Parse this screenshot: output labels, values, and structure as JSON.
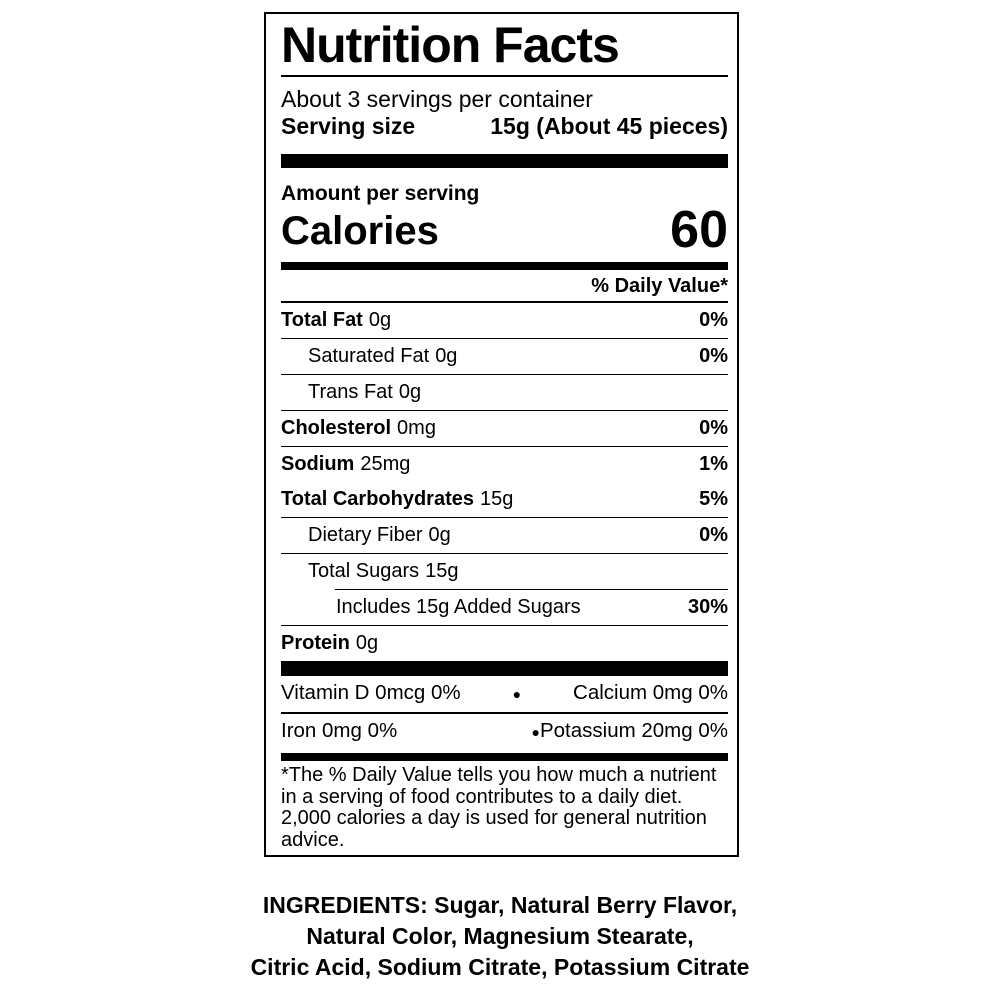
{
  "colors": {
    "text": "#000000",
    "background": "#ffffff"
  },
  "label": {
    "title": "Nutrition Facts",
    "servings_per_container": "About 3 servings per container",
    "serving_size": {
      "label": "Serving size",
      "value": "15g (About 45 pieces)"
    },
    "amount_per_serving": "Amount per serving",
    "calories": {
      "label": "Calories",
      "value": "60"
    },
    "daily_value_header": "% Daily Value*",
    "nutrients": [
      {
        "name": "Total Fat",
        "amount": "0g",
        "dv": "0%"
      },
      {
        "name": "Saturated Fat",
        "amount": "0g",
        "dv": "0%"
      },
      {
        "name": "Trans Fat",
        "amount": "0g",
        "dv": ""
      },
      {
        "name": "Cholesterol",
        "amount": "0mg",
        "dv": "0%"
      },
      {
        "name": "Sodium",
        "amount": "25mg",
        "dv": "1%"
      },
      {
        "name": "Total Carbohydrates",
        "amount": "15g",
        "dv": "5%"
      },
      {
        "name": "Dietary Fiber",
        "amount": "0g",
        "dv": "0%"
      },
      {
        "name": "Total Sugars",
        "amount": "15g",
        "dv": ""
      },
      {
        "name": "Includes 15g Added Sugars",
        "amount": "",
        "dv": "30%"
      },
      {
        "name": "Protein",
        "amount": "0g",
        "dv": ""
      }
    ],
    "micronutrients": {
      "bullet": "●",
      "row1": {
        "left": "Vitamin D 0mcg 0%",
        "right": "Calcium 0mg 0%"
      },
      "row2": {
        "left": "Iron 0mg 0%",
        "right": "Potassium 20mg 0%"
      }
    },
    "footnote_lines": [
      "*The % Daily Value tells you how much a nutrient",
      "in a serving of food contributes to a daily diet.",
      "2,000 calories a day is used for general nutrition",
      "advice."
    ]
  },
  "ingredients": {
    "lines": [
      "INGREDIENTS: Sugar, Natural Berry Flavor,",
      "Natural Color, Magnesium Stearate,",
      "Citric Acid, Sodium Citrate, Potassium Citrate"
    ]
  }
}
